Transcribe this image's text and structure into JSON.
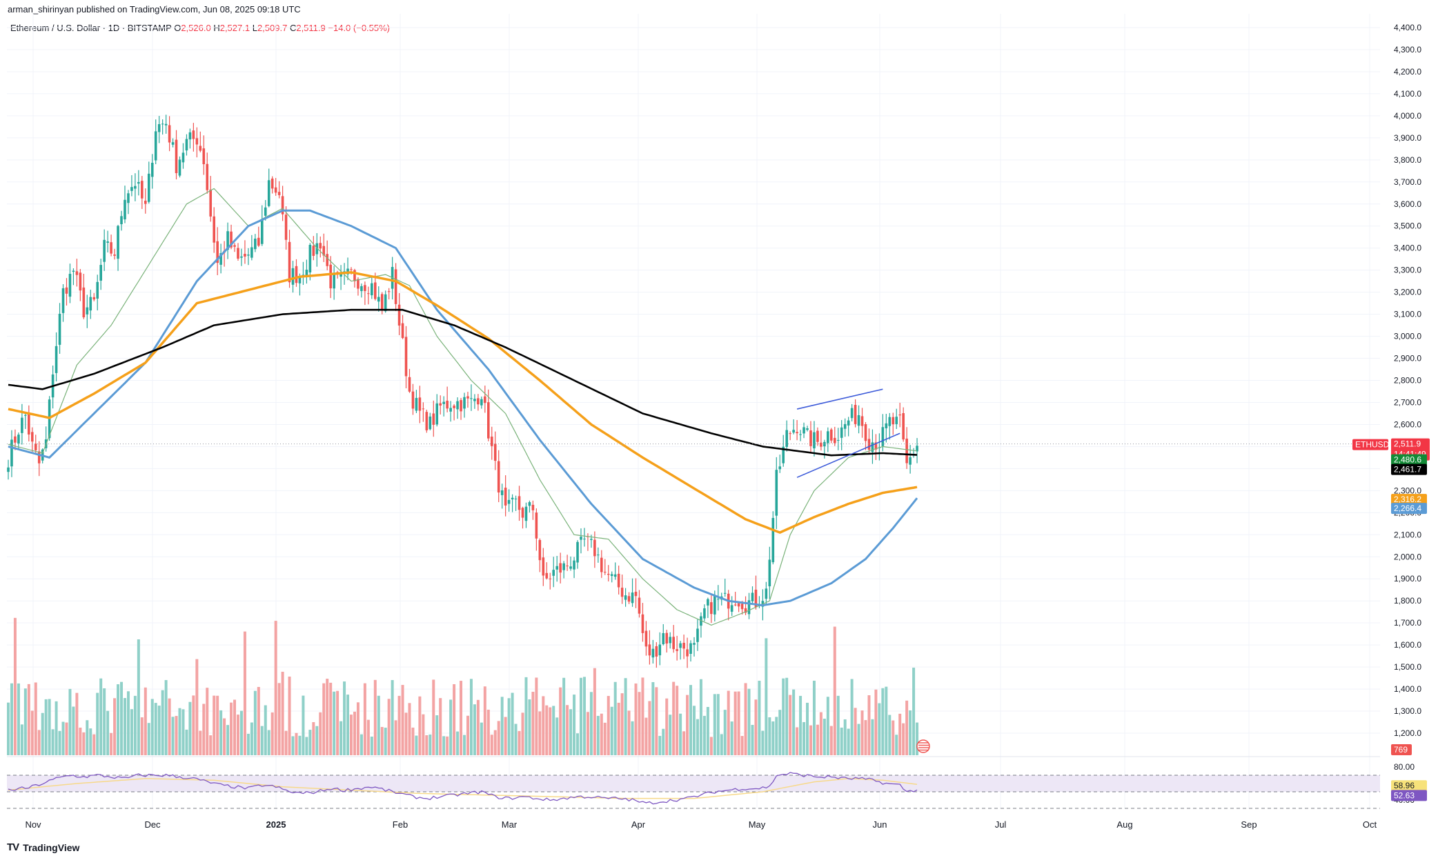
{
  "header": {
    "published": "arman_shirinyan published on TradingView.com, Jun 08, 2025 09:18 UTC"
  },
  "symbol": {
    "name": "Ethereum / U.S. Dollar · 1D · BITSTAMP",
    "o_label": "O",
    "o": "2,526.0",
    "h_label": "H",
    "h": "2,527.1",
    "l_label": "L",
    "l": "2,509.7",
    "c_label": "C",
    "c": "2,511.9",
    "change": "−14.0 (−0.55%)"
  },
  "logo": {
    "text": "TradingView"
  },
  "colors": {
    "up": "#26a69a",
    "down": "#ef5350",
    "vol_up": "#8fd0c8",
    "vol_down": "#f3a3a3",
    "ma_black": "#000000",
    "ma_orange": "#f5a01a",
    "ma_blue": "#5b9bd5",
    "ma_green": "#79b279",
    "rsi": "#7e57c2",
    "rsi_ma": "#f7d98a",
    "rsi_band": "#ede7f6",
    "trend_line": "#3d5bd9",
    "grid": "#f0f3fa"
  },
  "chart_data": {
    "type": "candlestick",
    "interval": "1D",
    "ylim": [
      1100,
      4400
    ],
    "y_ticks": [
      "4,400.0",
      "4,300.0",
      "4,200.0",
      "4,100.0",
      "4,000.0",
      "3,900.0",
      "3,800.0",
      "3,700.0",
      "3,600.0",
      "3,500.0",
      "3,400.0",
      "3,300.0",
      "3,200.0",
      "3,100.0",
      "3,000.0",
      "2,900.0",
      "2,800.0",
      "2,700.0",
      "2,600.0",
      "2,500.0",
      "2,400.0",
      "2,300.0",
      "2,200.0",
      "2,100.0",
      "2,000.0",
      "1,900.0",
      "1,800.0",
      "1,700.0",
      "1,600.0",
      "1,500.0",
      "1,400.0",
      "1,300.0",
      "1,200.0"
    ],
    "x_ticks": [
      "Nov",
      "Dec",
      "2025",
      "Feb",
      "Mar",
      "Apr",
      "May",
      "Jun",
      "Jul",
      "Aug",
      "Sep",
      "Oct"
    ],
    "price_keypoints": [
      [
        0,
        2450
      ],
      [
        3,
        2580
      ],
      [
        5,
        2640
      ],
      [
        7,
        2500
      ],
      [
        9,
        2420
      ],
      [
        11,
        2520
      ],
      [
        13,
        2850
      ],
      [
        16,
        3200
      ],
      [
        19,
        3300
      ],
      [
        22,
        3120
      ],
      [
        25,
        3150
      ],
      [
        28,
        3400
      ],
      [
        31,
        3380
      ],
      [
        34,
        3650
      ],
      [
        37,
        3700
      ],
      [
        40,
        3580
      ],
      [
        43,
        3950
      ],
      [
        46,
        3970
      ],
      [
        49,
        3780
      ],
      [
        52,
        3880
      ],
      [
        55,
        3900
      ],
      [
        57,
        3800
      ],
      [
        59,
        3550
      ],
      [
        61,
        3330
      ],
      [
        64,
        3440
      ],
      [
        67,
        3340
      ],
      [
        70,
        3370
      ],
      [
        73,
        3420
      ],
      [
        76,
        3700
      ],
      [
        79,
        3650
      ],
      [
        82,
        3280
      ],
      [
        85,
        3280
      ],
      [
        88,
        3370
      ],
      [
        91,
        3430
      ],
      [
        94,
        3250
      ],
      [
        97,
        3250
      ],
      [
        100,
        3280
      ],
      [
        103,
        3250
      ],
      [
        106,
        3230
      ],
      [
        109,
        3120
      ],
      [
        112,
        3280
      ],
      [
        114,
        3060
      ],
      [
        117,
        2750
      ],
      [
        120,
        2650
      ],
      [
        123,
        2600
      ],
      [
        126,
        2680
      ],
      [
        129,
        2700
      ],
      [
        132,
        2700
      ],
      [
        135,
        2700
      ],
      [
        138,
        2750
      ],
      [
        140,
        2570
      ],
      [
        142,
        2400
      ],
      [
        145,
        2200
      ],
      [
        148,
        2240
      ],
      [
        150,
        2200
      ],
      [
        153,
        2220
      ],
      [
        156,
        1880
      ],
      [
        159,
        1930
      ],
      [
        162,
        1950
      ],
      [
        165,
        2000
      ],
      [
        168,
        2070
      ],
      [
        171,
        2030
      ],
      [
        174,
        1930
      ],
      [
        177,
        1880
      ],
      [
        180,
        1830
      ],
      [
        183,
        1820
      ],
      [
        186,
        1570
      ],
      [
        188,
        1560
      ],
      [
        191,
        1650
      ],
      [
        194,
        1600
      ],
      [
        197,
        1590
      ],
      [
        200,
        1580
      ],
      [
        203,
        1750
      ],
      [
        206,
        1800
      ],
      [
        209,
        1800
      ],
      [
        212,
        1820
      ],
      [
        215,
        1790
      ],
      [
        218,
        1800
      ],
      [
        221,
        1840
      ],
      [
        224,
        2350
      ],
      [
        227,
        2550
      ],
      [
        230,
        2600
      ],
      [
        233,
        2540
      ],
      [
        236,
        2520
      ],
      [
        239,
        2560
      ],
      [
        242,
        2550
      ],
      [
        245,
        2620
      ],
      [
        248,
        2650
      ],
      [
        251,
        2530
      ],
      [
        254,
        2520
      ],
      [
        257,
        2610
      ],
      [
        260,
        2600
      ],
      [
        262,
        2410
      ],
      [
        264,
        2480
      ],
      [
        265,
        2512
      ]
    ],
    "ma_black": [
      [
        0,
        2780
      ],
      [
        10,
        2760
      ],
      [
        25,
        2830
      ],
      [
        45,
        2950
      ],
      [
        60,
        3050
      ],
      [
        80,
        3100
      ],
      [
        100,
        3120
      ],
      [
        115,
        3120
      ],
      [
        130,
        3050
      ],
      [
        145,
        2950
      ],
      [
        165,
        2800
      ],
      [
        185,
        2650
      ],
      [
        205,
        2560
      ],
      [
        220,
        2500
      ],
      [
        240,
        2460
      ],
      [
        255,
        2470
      ],
      [
        265,
        2462
      ]
    ],
    "ma_orange": [
      [
        0,
        2670
      ],
      [
        12,
        2630
      ],
      [
        25,
        2740
      ],
      [
        40,
        2880
      ],
      [
        55,
        3150
      ],
      [
        70,
        3210
      ],
      [
        85,
        3270
      ],
      [
        100,
        3290
      ],
      [
        113,
        3250
      ],
      [
        125,
        3140
      ],
      [
        140,
        2990
      ],
      [
        155,
        2800
      ],
      [
        170,
        2600
      ],
      [
        185,
        2450
      ],
      [
        200,
        2310
      ],
      [
        215,
        2170
      ],
      [
        225,
        2110
      ],
      [
        235,
        2180
      ],
      [
        245,
        2240
      ],
      [
        255,
        2290
      ],
      [
        265,
        2316
      ]
    ],
    "ma_blue": [
      [
        0,
        2500
      ],
      [
        12,
        2450
      ],
      [
        25,
        2650
      ],
      [
        40,
        2880
      ],
      [
        55,
        3250
      ],
      [
        70,
        3500
      ],
      [
        80,
        3570
      ],
      [
        88,
        3570
      ],
      [
        100,
        3500
      ],
      [
        113,
        3400
      ],
      [
        125,
        3120
      ],
      [
        140,
        2850
      ],
      [
        155,
        2530
      ],
      [
        170,
        2240
      ],
      [
        185,
        1990
      ],
      [
        200,
        1860
      ],
      [
        210,
        1800
      ],
      [
        220,
        1780
      ],
      [
        228,
        1800
      ],
      [
        240,
        1880
      ],
      [
        250,
        1990
      ],
      [
        258,
        2130
      ],
      [
        265,
        2266
      ]
    ],
    "ma_green": [
      [
        0,
        2510
      ],
      [
        10,
        2470
      ],
      [
        20,
        2870
      ],
      [
        30,
        3050
      ],
      [
        42,
        3350
      ],
      [
        52,
        3600
      ],
      [
        60,
        3670
      ],
      [
        70,
        3500
      ],
      [
        80,
        3580
      ],
      [
        90,
        3400
      ],
      [
        100,
        3250
      ],
      [
        110,
        3280
      ],
      [
        117,
        3230
      ],
      [
        125,
        3000
      ],
      [
        135,
        2800
      ],
      [
        145,
        2650
      ],
      [
        155,
        2350
      ],
      [
        165,
        2100
      ],
      [
        175,
        2080
      ],
      [
        185,
        1900
      ],
      [
        195,
        1760
      ],
      [
        205,
        1690
      ],
      [
        215,
        1750
      ],
      [
        222,
        1800
      ],
      [
        228,
        2100
      ],
      [
        235,
        2300
      ],
      [
        245,
        2450
      ],
      [
        255,
        2500
      ],
      [
        265,
        2480
      ]
    ],
    "trend_lines": [
      {
        "points": [
          [
            230,
            2670
          ],
          [
            255,
            2760
          ]
        ]
      },
      {
        "points": [
          [
            230,
            2360
          ],
          [
            260,
            2560
          ]
        ]
      }
    ],
    "volume_max": 1000,
    "volume_label": "769",
    "rsi": {
      "ticks": [
        "80.00",
        "40.00"
      ],
      "values": [
        [
          0,
          52
        ],
        [
          6,
          55
        ],
        [
          10,
          60
        ],
        [
          14,
          66
        ],
        [
          18,
          70
        ],
        [
          22,
          68
        ],
        [
          26,
          70
        ],
        [
          30,
          68
        ],
        [
          34,
          66
        ],
        [
          38,
          70
        ],
        [
          42,
          70
        ],
        [
          46,
          70
        ],
        [
          50,
          68
        ],
        [
          54,
          66
        ],
        [
          58,
          62
        ],
        [
          62,
          58
        ],
        [
          66,
          56
        ],
        [
          70,
          54
        ],
        [
          74,
          58
        ],
        [
          78,
          56
        ],
        [
          82,
          50
        ],
        [
          86,
          48
        ],
        [
          90,
          50
        ],
        [
          94,
          54
        ],
        [
          98,
          52
        ],
        [
          102,
          54
        ],
        [
          106,
          56
        ],
        [
          110,
          52
        ],
        [
          114,
          48
        ],
        [
          118,
          44
        ],
        [
          122,
          42
        ],
        [
          126,
          44
        ],
        [
          130,
          46
        ],
        [
          134,
          48
        ],
        [
          138,
          50
        ],
        [
          142,
          44
        ],
        [
          146,
          42
        ],
        [
          150,
          44
        ],
        [
          154,
          42
        ],
        [
          158,
          40
        ],
        [
          162,
          42
        ],
        [
          166,
          44
        ],
        [
          170,
          44
        ],
        [
          174,
          42
        ],
        [
          178,
          42
        ],
        [
          182,
          40
        ],
        [
          186,
          36
        ],
        [
          190,
          38
        ],
        [
          194,
          40
        ],
        [
          198,
          42
        ],
        [
          202,
          46
        ],
        [
          206,
          50
        ],
        [
          210,
          52
        ],
        [
          214,
          54
        ],
        [
          218,
          54
        ],
        [
          222,
          56
        ],
        [
          224,
          70
        ],
        [
          228,
          72
        ],
        [
          232,
          70
        ],
        [
          236,
          68
        ],
        [
          240,
          68
        ],
        [
          244,
          66
        ],
        [
          248,
          66
        ],
        [
          252,
          64
        ],
        [
          256,
          60
        ],
        [
          260,
          58
        ],
        [
          262,
          50
        ],
        [
          265,
          53
        ]
      ],
      "ma_values": [
        [
          0,
          52
        ],
        [
          20,
          60
        ],
        [
          40,
          66
        ],
        [
          60,
          64
        ],
        [
          80,
          56
        ],
        [
          100,
          52
        ],
        [
          120,
          48
        ],
        [
          140,
          46
        ],
        [
          160,
          44
        ],
        [
          180,
          42
        ],
        [
          200,
          42
        ],
        [
          220,
          50
        ],
        [
          235,
          62
        ],
        [
          245,
          66
        ],
        [
          255,
          64
        ],
        [
          265,
          59
        ]
      ],
      "labels": [
        "58.96",
        "52.63"
      ]
    },
    "price_labels": {
      "symbol": "ETHUSD",
      "last": "2,511.9",
      "countdown": "14:41:49",
      "green_ma": "2,480.6",
      "black_ma": "2,461.7",
      "orange_ma": "2,316.2",
      "blue_ma": "2,266.4"
    }
  }
}
